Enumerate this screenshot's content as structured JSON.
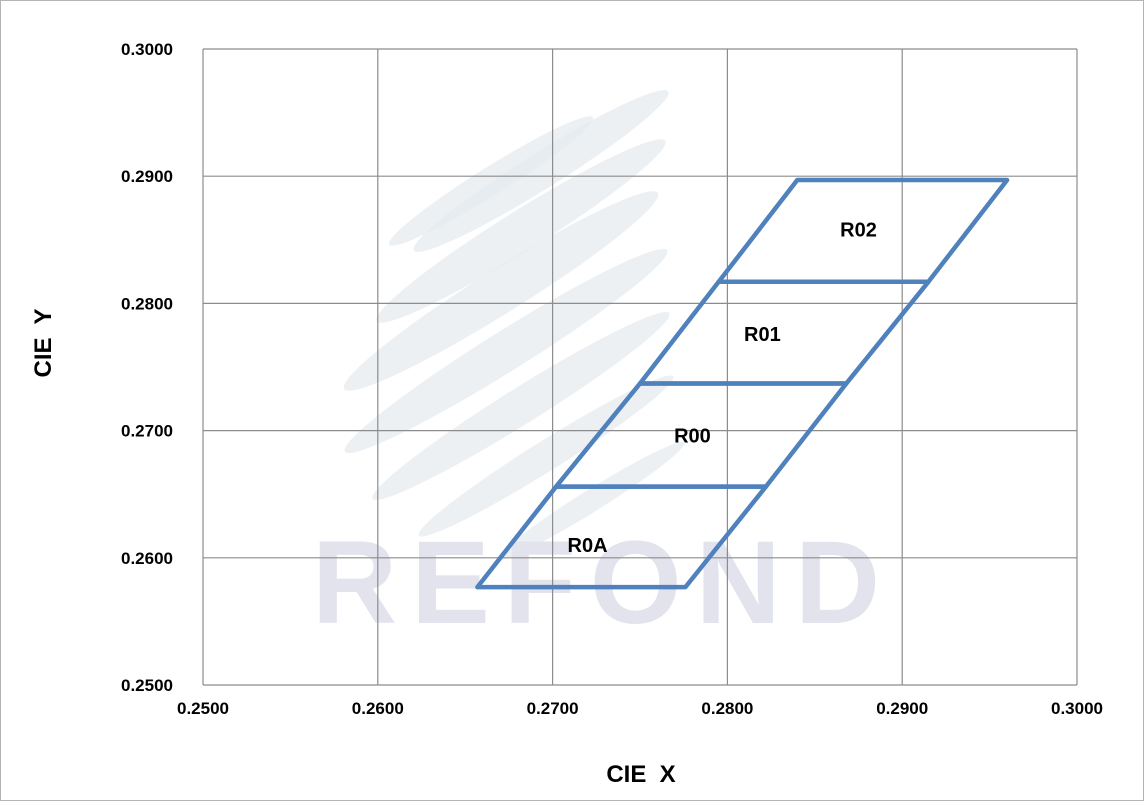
{
  "chart_data": {
    "type": "scatter",
    "title": "",
    "xlabel": "CIE  X",
    "ylabel": "CIE  Y",
    "xlim": [
      0.25,
      0.3
    ],
    "ylim": [
      0.25,
      0.3
    ],
    "x_ticks": [
      "0.2500",
      "0.2600",
      "0.2700",
      "0.2800",
      "0.2900",
      "0.3000"
    ],
    "y_ticks": [
      "0.2500",
      "0.2600",
      "0.2700",
      "0.2800",
      "0.2900",
      "0.3000"
    ],
    "grid": true,
    "line_color": "#4f81bd",
    "watermark": "REFOND",
    "regions": [
      {
        "name": "R0A",
        "label_at": [
          0.272,
          0.261
        ],
        "polygon": [
          [
            0.2657,
            0.2577
          ],
          [
            0.2776,
            0.2577
          ],
          [
            0.2822,
            0.2656
          ],
          [
            0.2702,
            0.2656
          ]
        ]
      },
      {
        "name": "R00",
        "label_at": [
          0.278,
          0.2696
        ],
        "polygon": [
          [
            0.2702,
            0.2656
          ],
          [
            0.2822,
            0.2656
          ],
          [
            0.2868,
            0.2737
          ],
          [
            0.275,
            0.2737
          ]
        ]
      },
      {
        "name": "R01",
        "label_at": [
          0.282,
          0.2776
        ],
        "polygon": [
          [
            0.275,
            0.2737
          ],
          [
            0.2868,
            0.2737
          ],
          [
            0.2915,
            0.2817
          ],
          [
            0.2795,
            0.2817
          ]
        ]
      },
      {
        "name": "R02",
        "label_at": [
          0.2875,
          0.2858
        ],
        "polygon": [
          [
            0.2795,
            0.2817
          ],
          [
            0.2915,
            0.2817
          ],
          [
            0.296,
            0.2897
          ],
          [
            0.284,
            0.2897
          ]
        ]
      }
    ]
  }
}
